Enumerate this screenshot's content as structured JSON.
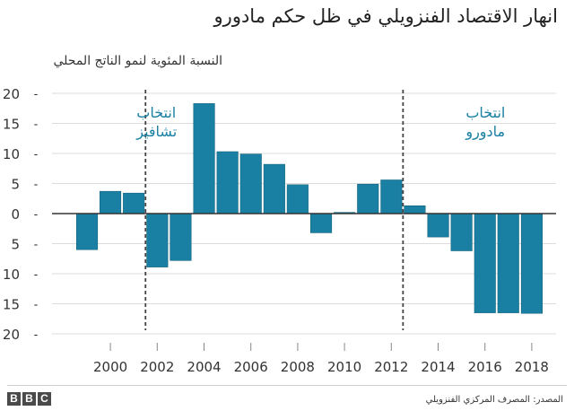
{
  "chart_data": {
    "type": "bar",
    "title": "انهار الاقتصاد الفنزويلي في ظل حكم مادورو",
    "ylabel": "النسبة المئوية لنمو الناتج المحلي",
    "xlabel": "",
    "x": [
      1999,
      2000,
      2001,
      2002,
      2003,
      2004,
      2005,
      2006,
      2007,
      2008,
      2009,
      2010,
      2011,
      2012,
      2013,
      2014,
      2015,
      2016,
      2017,
      2018
    ],
    "values": [
      -6,
      3.7,
      3.4,
      -8.9,
      -7.8,
      18.3,
      10.3,
      9.9,
      8.2,
      4.8,
      -3.2,
      0.2,
      4.9,
      5.6,
      1.3,
      -3.9,
      -6.2,
      -16.5,
      -16.5,
      -16.6
    ],
    "x_ticks": [
      "2000",
      "2002",
      "2004",
      "2006",
      "2008",
      "2010",
      "2012",
      "2014",
      "2016",
      "2018"
    ],
    "y_ticks": [
      "20",
      "15",
      "10",
      "5",
      "0",
      "5",
      "10",
      "15",
      "20"
    ],
    "ylim": [
      -20,
      20
    ],
    "grid": true,
    "bar_color": "#1a80a3",
    "annotations": [
      {
        "line1": "انتخاب",
        "line2": "تشافيز",
        "x": 2001.5
      },
      {
        "line1": "انتخاب",
        "line2": "مادورو",
        "x": 2012.5
      }
    ]
  },
  "footer": {
    "logo_letters": [
      "B",
      "B",
      "C"
    ],
    "source": "المصدر: المصرف المركزي الفنزويلي"
  }
}
